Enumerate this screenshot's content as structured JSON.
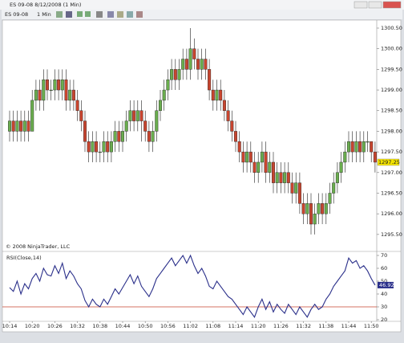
{
  "window": {
    "title": "ES 09-08  8/12/2008 (1 Min)",
    "instrument": "ES 09-08",
    "interval": "1 Min"
  },
  "chart_data": [
    {
      "type": "candlestick",
      "copyright": "© 2008 NinjaTrader, LLC",
      "up_color": "#6aad4e",
      "down_color": "#c8452f",
      "ylim": [
        1295.1,
        1300.64
      ],
      "yticks": [
        {
          "value": 1295.5,
          "label": "1295.50"
        },
        {
          "value": 1296,
          "label": "1296.00"
        },
        {
          "value": 1296.5,
          "label": "1296.50"
        },
        {
          "value": 1297,
          "label": "1297.00"
        },
        {
          "value": 1297.5,
          "label": "1297.50"
        },
        {
          "value": 1298,
          "label": "1298.00"
        },
        {
          "value": 1298.5,
          "label": "1298.50"
        },
        {
          "value": 1299,
          "label": "1299.00"
        },
        {
          "value": 1299.5,
          "label": "1299.50"
        },
        {
          "value": 1300,
          "label": "1300.00"
        },
        {
          "value": 1300.5,
          "label": "1300.50"
        }
      ],
      "open": [
        1298.0,
        1298.25,
        1298.0,
        1298.25,
        1298.0,
        1298.25,
        1298.0,
        1298.75,
        1299.0,
        1298.75,
        1299.25,
        1299.0,
        1299.0,
        1299.25,
        1299.0,
        1299.25,
        1298.75,
        1299.0,
        1298.75,
        1298.5,
        1298.25,
        1297.75,
        1297.5,
        1297.75,
        1297.5,
        1297.5,
        1297.75,
        1297.5,
        1297.75,
        1298.0,
        1297.75,
        1298.0,
        1298.25,
        1298.5,
        1298.25,
        1298.5,
        1298.25,
        1298.0,
        1297.75,
        1298.0,
        1298.5,
        1298.75,
        1299.0,
        1299.25,
        1299.5,
        1299.25,
        1299.5,
        1299.75,
        1299.5,
        1300.0,
        1299.75,
        1299.5,
        1299.75,
        1299.5,
        1299.0,
        1298.75,
        1299.0,
        1298.75,
        1298.5,
        1298.25,
        1298.0,
        1297.75,
        1297.5,
        1297.25,
        1297.5,
        1297.25,
        1297.0,
        1297.25,
        1297.5,
        1297.0,
        1297.25,
        1296.75,
        1297.0,
        1296.75,
        1297.0,
        1296.75,
        1296.5,
        1296.75,
        1296.25,
        1296.0,
        1296.25,
        1295.75,
        1296.0,
        1296.25,
        1296.0,
        1296.25,
        1296.5,
        1296.75,
        1297.0,
        1297.25,
        1297.5,
        1297.75,
        1297.5,
        1297.75,
        1297.5,
        1297.75,
        1297.75,
        1297.5
      ],
      "high": [
        1298.5,
        1298.5,
        1298.5,
        1298.5,
        1298.5,
        1298.5,
        1299.0,
        1299.25,
        1299.25,
        1299.5,
        1299.5,
        1299.25,
        1299.5,
        1299.5,
        1299.5,
        1299.5,
        1299.25,
        1299.25,
        1299.0,
        1298.75,
        1298.5,
        1298.0,
        1298.0,
        1298.0,
        1297.75,
        1298.0,
        1298.0,
        1298.0,
        1298.25,
        1298.25,
        1298.25,
        1298.5,
        1298.75,
        1298.75,
        1298.75,
        1298.75,
        1298.5,
        1298.25,
        1298.25,
        1298.75,
        1299.0,
        1299.25,
        1299.5,
        1299.75,
        1299.75,
        1299.75,
        1300.0,
        1300.0,
        1300.5,
        1300.25,
        1300.0,
        1300.0,
        1300.0,
        1299.75,
        1299.25,
        1299.25,
        1299.25,
        1299.0,
        1298.75,
        1298.5,
        1298.25,
        1298.0,
        1297.75,
        1297.75,
        1297.75,
        1297.5,
        1297.5,
        1297.75,
        1297.75,
        1297.5,
        1297.5,
        1297.25,
        1297.25,
        1297.25,
        1297.25,
        1297.0,
        1297.0,
        1297.0,
        1296.5,
        1296.5,
        1296.5,
        1296.25,
        1296.5,
        1296.5,
        1296.5,
        1296.75,
        1297.0,
        1297.25,
        1297.5,
        1297.75,
        1298.0,
        1298.0,
        1298.0,
        1298.0,
        1298.0,
        1298.0,
        1297.75,
        1297.75
      ],
      "low": [
        1297.75,
        1297.75,
        1297.75,
        1297.75,
        1297.75,
        1297.75,
        1298.0,
        1298.5,
        1298.5,
        1298.5,
        1298.75,
        1298.75,
        1298.75,
        1298.75,
        1298.75,
        1298.5,
        1298.5,
        1298.5,
        1298.25,
        1298.0,
        1297.5,
        1297.25,
        1297.25,
        1297.25,
        1297.25,
        1297.25,
        1297.25,
        1297.25,
        1297.5,
        1297.5,
        1297.5,
        1297.75,
        1298.0,
        1298.0,
        1298.0,
        1297.75,
        1297.75,
        1297.5,
        1297.5,
        1297.75,
        1298.25,
        1298.5,
        1298.75,
        1299.0,
        1299.0,
        1299.0,
        1299.25,
        1299.25,
        1299.25,
        1299.5,
        1299.25,
        1299.25,
        1299.25,
        1298.75,
        1298.5,
        1298.5,
        1298.5,
        1298.25,
        1298.0,
        1297.75,
        1297.5,
        1297.25,
        1297.0,
        1297.0,
        1297.0,
        1296.75,
        1296.75,
        1297.0,
        1296.75,
        1296.75,
        1296.5,
        1296.5,
        1296.5,
        1296.5,
        1296.5,
        1296.25,
        1296.25,
        1296.0,
        1295.75,
        1295.75,
        1295.5,
        1295.5,
        1295.75,
        1295.75,
        1295.75,
        1296.0,
        1296.25,
        1296.5,
        1296.75,
        1297.0,
        1297.25,
        1297.25,
        1297.25,
        1297.25,
        1297.25,
        1297.5,
        1297.25,
        1297.0
      ],
      "close": [
        1298.25,
        1298.0,
        1298.25,
        1298.0,
        1298.25,
        1298.0,
        1298.75,
        1299.0,
        1298.75,
        1299.25,
        1299.0,
        1299.0,
        1299.25,
        1299.0,
        1299.25,
        1298.75,
        1299.0,
        1298.75,
        1298.5,
        1298.25,
        1297.75,
        1297.5,
        1297.75,
        1297.5,
        1297.5,
        1297.75,
        1297.5,
        1297.75,
        1298.0,
        1297.75,
        1298.0,
        1298.25,
        1298.5,
        1298.25,
        1298.5,
        1298.25,
        1298.0,
        1297.75,
        1298.0,
        1298.5,
        1298.75,
        1299.0,
        1299.25,
        1299.5,
        1299.25,
        1299.5,
        1299.75,
        1299.5,
        1300.0,
        1299.75,
        1299.5,
        1299.75,
        1299.5,
        1299.0,
        1298.75,
        1299.0,
        1298.75,
        1298.5,
        1298.25,
        1298.0,
        1297.75,
        1297.5,
        1297.25,
        1297.5,
        1297.25,
        1297.0,
        1297.25,
        1297.5,
        1297.0,
        1297.25,
        1296.75,
        1297.0,
        1296.75,
        1297.0,
        1296.75,
        1296.5,
        1296.75,
        1296.25,
        1296.0,
        1296.25,
        1295.75,
        1296.0,
        1296.25,
        1296.0,
        1296.25,
        1296.5,
        1296.75,
        1297.0,
        1297.25,
        1297.5,
        1297.75,
        1297.5,
        1297.75,
        1297.5,
        1297.75,
        1297.75,
        1297.5,
        1297.25
      ]
    },
    {
      "type": "line",
      "title": "RSI(Close,14)",
      "color": "#2a2f8a",
      "level": 30,
      "level_color": "#c8452f",
      "ylim": [
        19,
        71
      ],
      "yticks": [
        20,
        30,
        40,
        50,
        60,
        70
      ],
      "categories": [
        "10:14",
        null,
        null,
        null,
        null,
        null,
        "10:20",
        null,
        null,
        null,
        null,
        null,
        "10:26",
        null,
        null,
        null,
        null,
        null,
        "10:32",
        null,
        null,
        null,
        null,
        null,
        "10:38",
        null,
        null,
        null,
        null,
        null,
        "10:44",
        null,
        null,
        null,
        null,
        null,
        "10:50",
        null,
        null,
        null,
        null,
        null,
        "10:56",
        null,
        null,
        null,
        null,
        null,
        "11:02",
        null,
        null,
        null,
        null,
        null,
        "11:08",
        null,
        null,
        null,
        null,
        null,
        "11:14",
        null,
        null,
        null,
        null,
        null,
        "11:20",
        null,
        null,
        null,
        null,
        null,
        "11:26",
        null,
        null,
        null,
        null,
        null,
        "11:32",
        null,
        null,
        null,
        null,
        null,
        "11:38",
        null,
        null,
        null,
        null,
        null,
        "11:44",
        null,
        null,
        null,
        null,
        null,
        "11:50",
        null
      ],
      "values": [
        45,
        42,
        50,
        40,
        48,
        44,
        52,
        56,
        50,
        60,
        55,
        54,
        62,
        56,
        64,
        52,
        58,
        54,
        48,
        44,
        35,
        30,
        36,
        32,
        30,
        36,
        32,
        38,
        44,
        40,
        45,
        50,
        55,
        48,
        54,
        46,
        42,
        38,
        44,
        52,
        56,
        60,
        64,
        68,
        62,
        66,
        70,
        64,
        70,
        62,
        56,
        60,
        54,
        46,
        44,
        50,
        46,
        42,
        38,
        36,
        32,
        28,
        24,
        30,
        26,
        22,
        30,
        36,
        28,
        34,
        26,
        32,
        28,
        25,
        32,
        28,
        24,
        30,
        26,
        22,
        28,
        32,
        28,
        30,
        36,
        40,
        46,
        50,
        54,
        58,
        68,
        64,
        66,
        60,
        62,
        58,
        52,
        46.92
      ]
    }
  ]
}
